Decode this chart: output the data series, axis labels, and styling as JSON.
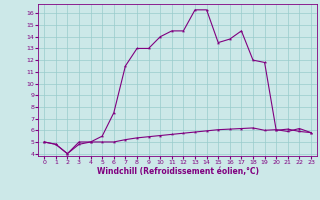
{
  "xlabel": "Windchill (Refroidissement éolien,°C)",
  "background_color": "#cce8e8",
  "line_color": "#800080",
  "grid_color": "#99cccc",
  "xlim": [
    -0.5,
    23.5
  ],
  "ylim": [
    3.8,
    16.8
  ],
  "xticks": [
    0,
    1,
    2,
    3,
    4,
    5,
    6,
    7,
    8,
    9,
    10,
    11,
    12,
    13,
    14,
    15,
    16,
    17,
    18,
    19,
    20,
    21,
    22,
    23
  ],
  "yticks": [
    4,
    5,
    6,
    7,
    8,
    9,
    10,
    11,
    12,
    13,
    14,
    15,
    16
  ],
  "series1_x": [
    0,
    1,
    2,
    3,
    4,
    5,
    6,
    7,
    8,
    9,
    10,
    11,
    12,
    13,
    14,
    15,
    16,
    17,
    18,
    19,
    20,
    21,
    22,
    23
  ],
  "series1_y": [
    5.0,
    4.8,
    4.0,
    4.8,
    5.0,
    5.0,
    5.0,
    5.2,
    5.35,
    5.45,
    5.55,
    5.65,
    5.75,
    5.85,
    5.95,
    6.05,
    6.1,
    6.15,
    6.2,
    6.0,
    6.05,
    5.9,
    6.15,
    5.8
  ],
  "series2_x": [
    0,
    1,
    2,
    3,
    4,
    5,
    6,
    7,
    8,
    9,
    10,
    11,
    12,
    13,
    14,
    15,
    16,
    17,
    18,
    19,
    20,
    21,
    22,
    23
  ],
  "series2_y": [
    5.0,
    4.8,
    4.0,
    5.0,
    5.0,
    5.5,
    7.5,
    11.5,
    13.0,
    13.0,
    14.0,
    14.5,
    14.5,
    16.3,
    16.3,
    13.5,
    13.8,
    14.5,
    12.0,
    11.8,
    6.0,
    6.1,
    5.9,
    5.8
  ],
  "xlabel_fontsize": 5.5,
  "tick_fontsize": 4.5,
  "linewidth": 0.8,
  "markersize": 2.5
}
